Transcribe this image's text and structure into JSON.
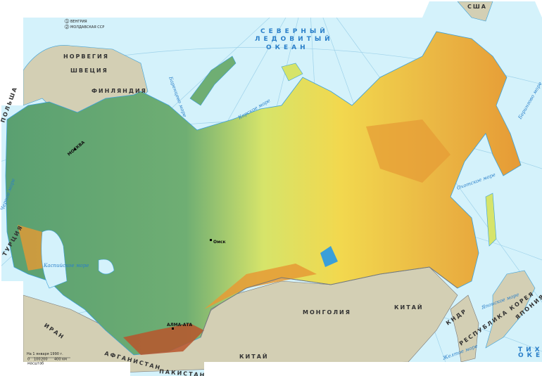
{
  "map": {
    "legend": {
      "items": [
        {
          "number": "1",
          "label": "ВЕНГРИЯ"
        },
        {
          "number": "2",
          "label": "МОЛДАВСКАЯ ССР"
        }
      ]
    },
    "countries": {
      "norway": "НОРВЕГИЯ",
      "sweden": "ШВЕЦИЯ",
      "finland": "ФИНЛЯНДИЯ",
      "poland": "ПОЛЬША",
      "turkey": "ТУРЦИЯ",
      "iran": "ИРАН",
      "afghanistan": "АФГАНИСТАН",
      "pakistan": "ПАКИСТАН",
      "mongolia": "МОНГОЛИЯ",
      "china_north": "КИТАЙ",
      "china_south": "КИТАЙ",
      "dprk": "КНДР",
      "korea": "РЕСПУБЛИКА КОРЕЯ",
      "japan": "ЯПОНИЯ",
      "usa": "США"
    },
    "oceans": {
      "arctic_line1": "СЕВЕРНЫЙ",
      "arctic_line2": "ЛЕДОВИТЫЙ",
      "arctic_line3": "ОКЕАН",
      "pacific_line1": "ТИХИЙ",
      "pacific_line2": "ОКЕАН"
    },
    "seas": {
      "barents": "Баренцево море",
      "kara": "Карское море",
      "okhotsk": "Охотское море",
      "bering": "Берингово море",
      "japan_sea": "Японское море",
      "yellow": "Желтое море",
      "caspian": "Каспийское море",
      "black": "Черное море"
    },
    "cities": {
      "moscow": "МОСКВА",
      "omsk": "Омск",
      "almaty": "АЛМА-АТА"
    },
    "date_note": "На 1 января 1990 г.",
    "scale": {
      "ticks": [
        "0",
        "100",
        "200",
        "400 км"
      ],
      "unit_label": "масштаб"
    },
    "colors": {
      "sea": "#d4f2fb",
      "foreign_land": "#d3cfb4",
      "lowland": "#5aa071",
      "plain": "#c6dc6a",
      "upland": "#f2d84e",
      "mountain": "#e69a35",
      "high_mountain": "#b8552b"
    }
  }
}
